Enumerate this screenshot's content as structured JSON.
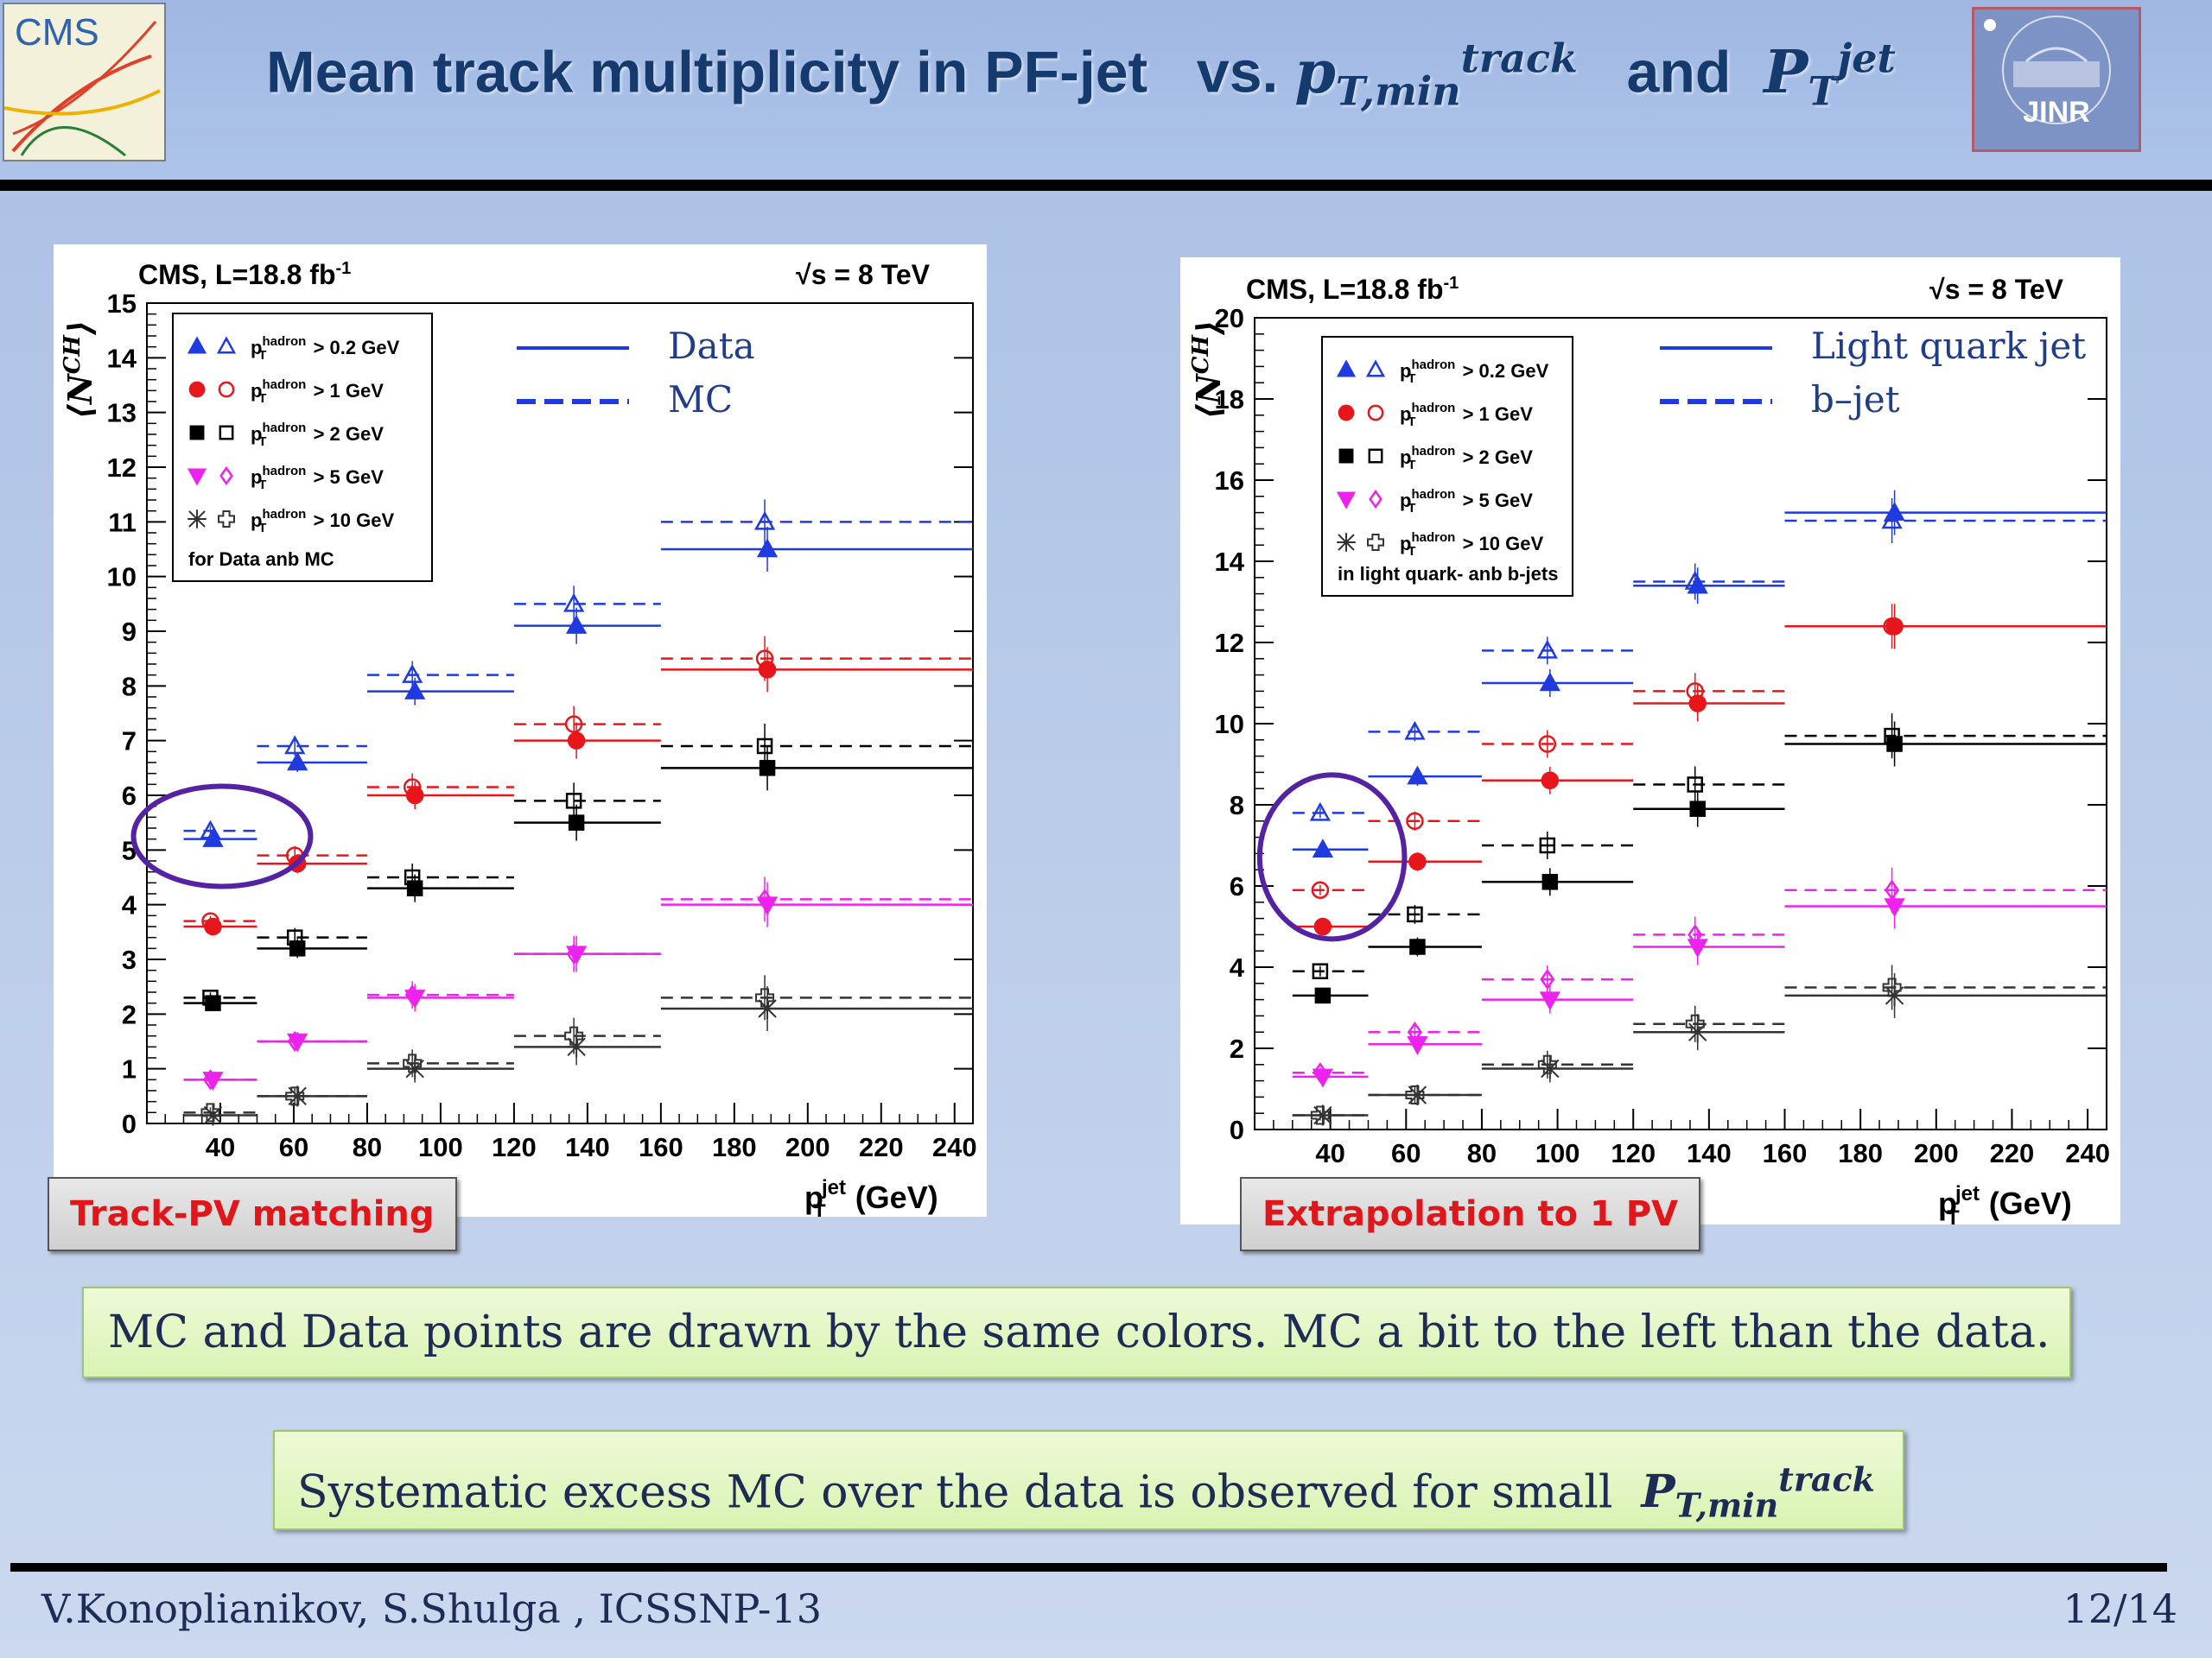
{
  "header": {
    "title_text": "Mean track multiplicity in PF-jet",
    "vs": "vs.",
    "ptmin_base": "p",
    "ptmin_sub": "T,min",
    "ptmin_sup": "track",
    "and": "and",
    "ptjet_base": "P",
    "ptjet_sub": "T",
    "ptjet_sup": "jet",
    "logo_left": "CMS",
    "logo_right": "JINR"
  },
  "chart_data": [
    {
      "type": "scatter",
      "header_left": "CMS, L=18.8 fb",
      "header_left_sup": "-1",
      "header_right": "√s = 8 TeV",
      "ylabel": "⟨N",
      "ylabel_sup": "CH",
      "ylabel_end": "⟩",
      "xlabel_main": "p",
      "xlabel_sub": "T",
      "xlabel_sup": "jet",
      "xlabel_unit": "(GeV)",
      "xlim": [
        20,
        245
      ],
      "ylim": [
        0,
        15
      ],
      "xticks": [
        40,
        60,
        80,
        100,
        120,
        140,
        160,
        180,
        200,
        220,
        240
      ],
      "yticks": [
        0,
        1,
        2,
        3,
        4,
        5,
        6,
        7,
        8,
        9,
        10,
        11,
        12,
        13,
        14,
        15
      ],
      "bins": [
        [
          30,
          50
        ],
        [
          50,
          80
        ],
        [
          80,
          120
        ],
        [
          120,
          160
        ],
        [
          160,
          245
        ]
      ],
      "x_centers": [
        38,
        61,
        93,
        137,
        189
      ],
      "legend": {
        "entries": [
          {
            "marker": "triangle-up",
            "color": "#1f3be0",
            "label": "p",
            "sub": "T",
            "sup": "hadron",
            "tail": " > 0.2 GeV"
          },
          {
            "marker": "circle",
            "color": "#e8161b",
            "label": "p",
            "sub": "T",
            "sup": "hadron",
            "tail": " > 1 GeV"
          },
          {
            "marker": "square",
            "color": "#000000",
            "label": "p",
            "sub": "T",
            "sup": "hadron",
            "tail": " > 2 GeV"
          },
          {
            "marker": "triangle-down",
            "color": "#ee22ee",
            "label": "p",
            "sub": "T",
            "sup": "hadron",
            "tail": " > 5 GeV"
          },
          {
            "marker": "star-cross",
            "color": "#333333",
            "label": "p",
            "sub": "T",
            "sup": "hadron",
            "tail": " > 10 GeV"
          }
        ],
        "note": "for Data anb MC"
      },
      "line_legend": {
        "solid": "Data",
        "dashed": "MC"
      },
      "highlight_bin": 0,
      "series": [
        {
          "cut": "0.2",
          "color": "#1f3be0",
          "marker": "triangle-up",
          "solid": [
            5.2,
            6.6,
            7.9,
            9.1,
            10.5
          ],
          "dashed": [
            5.35,
            6.9,
            8.2,
            9.5,
            11.0
          ]
        },
        {
          "cut": "1",
          "color": "#e8161b",
          "marker": "circle",
          "solid": [
            3.6,
            4.75,
            6.0,
            7.0,
            8.3
          ],
          "dashed": [
            3.7,
            4.9,
            6.15,
            7.3,
            8.5
          ]
        },
        {
          "cut": "2",
          "color": "#000000",
          "marker": "square",
          "solid": [
            2.2,
            3.2,
            4.3,
            5.5,
            6.5
          ],
          "dashed": [
            2.3,
            3.4,
            4.5,
            5.9,
            6.9
          ]
        },
        {
          "cut": "5",
          "color": "#ee22ee",
          "marker": "triangle-down",
          "solid": [
            0.8,
            1.5,
            2.3,
            3.1,
            4.0
          ],
          "dashed": [
            0.8,
            1.5,
            2.35,
            3.1,
            4.1
          ]
        },
        {
          "cut": "10",
          "color": "#333333",
          "marker": "star-cross",
          "solid": [
            0.15,
            0.5,
            1.0,
            1.4,
            2.1
          ],
          "dashed": [
            0.2,
            0.5,
            1.1,
            1.6,
            2.3
          ]
        }
      ]
    },
    {
      "type": "scatter",
      "header_left": "CMS, L=18.8 fb",
      "header_left_sup": "-1",
      "header_right": "√s = 8 TeV",
      "ylabel": "⟨N",
      "ylabel_sup": "CH",
      "ylabel_end": "⟩",
      "xlabel_main": "p",
      "xlabel_sub": "T",
      "xlabel_sup": "jet",
      "xlabel_unit": "(GeV)",
      "xlim": [
        20,
        245
      ],
      "ylim": [
        0,
        20
      ],
      "xticks": [
        40,
        60,
        80,
        100,
        120,
        140,
        160,
        180,
        200,
        220,
        240
      ],
      "yticks": [
        0,
        2,
        4,
        6,
        8,
        10,
        12,
        14,
        16,
        18,
        20
      ],
      "bins": [
        [
          30,
          50
        ],
        [
          50,
          80
        ],
        [
          80,
          120
        ],
        [
          120,
          160
        ],
        [
          160,
          245
        ]
      ],
      "x_centers": [
        38,
        63,
        98,
        137,
        189
      ],
      "legend": {
        "entries": [
          {
            "marker": "triangle-up",
            "color": "#1f3be0",
            "label": "p",
            "sub": "T",
            "sup": "hadron",
            "tail": " > 0.2 GeV"
          },
          {
            "marker": "circle",
            "color": "#e8161b",
            "label": "p",
            "sub": "T",
            "sup": "hadron",
            "tail": " > 1 GeV"
          },
          {
            "marker": "square",
            "color": "#000000",
            "label": "p",
            "sub": "T",
            "sup": "hadron",
            "tail": " > 2 GeV"
          },
          {
            "marker": "triangle-down",
            "color": "#ee22ee",
            "label": "p",
            "sub": "T",
            "sup": "hadron",
            "tail": " > 5 GeV"
          },
          {
            "marker": "star-cross",
            "color": "#333333",
            "label": "p",
            "sub": "T",
            "sup": "hadron",
            "tail": " > 10 GeV"
          }
        ],
        "note": "in light quark- anb b-jets"
      },
      "line_legend": {
        "solid": "Light quark jet",
        "dashed": "b–jet"
      },
      "highlight_bin": 0,
      "series": [
        {
          "cut": "0.2",
          "color": "#1f3be0",
          "marker": "triangle-up",
          "solid": [
            6.9,
            8.7,
            11.0,
            13.4,
            15.2
          ],
          "dashed": [
            7.8,
            9.8,
            11.8,
            13.5,
            15.0
          ]
        },
        {
          "cut": "1",
          "color": "#e8161b",
          "marker": "circle",
          "solid": [
            5.0,
            6.6,
            8.6,
            10.5,
            12.4
          ],
          "dashed": [
            5.9,
            7.6,
            9.5,
            10.8,
            12.4
          ]
        },
        {
          "cut": "2",
          "color": "#000000",
          "marker": "square",
          "solid": [
            3.3,
            4.5,
            6.1,
            7.9,
            9.5
          ],
          "dashed": [
            3.9,
            5.3,
            7.0,
            8.5,
            9.7
          ]
        },
        {
          "cut": "5",
          "color": "#ee22ee",
          "marker": "triangle-down",
          "solid": [
            1.3,
            2.1,
            3.2,
            4.5,
            5.5
          ],
          "dashed": [
            1.4,
            2.4,
            3.7,
            4.8,
            5.9
          ]
        },
        {
          "cut": "10",
          "color": "#333333",
          "marker": "star-cross",
          "solid": [
            0.35,
            0.85,
            1.5,
            2.4,
            3.3
          ],
          "dashed": [
            0.35,
            0.85,
            1.6,
            2.6,
            3.5
          ]
        }
      ]
    }
  ],
  "labels": {
    "left_tag": "Track-PV matching",
    "right_tag": "Extrapolation to 1 PV"
  },
  "notes": {
    "note1": "MC and Data points are drawn by the same colors. MC a bit to the left than the data.",
    "note2": "Systematic excess MC over the data is observed for small",
    "note2_base": "P",
    "note2_sub": "T,min",
    "note2_sup": "track"
  },
  "footer": {
    "authors": "V.Konoplianikov, S.Shulga , ICSSNP-13",
    "page": "12/14"
  }
}
